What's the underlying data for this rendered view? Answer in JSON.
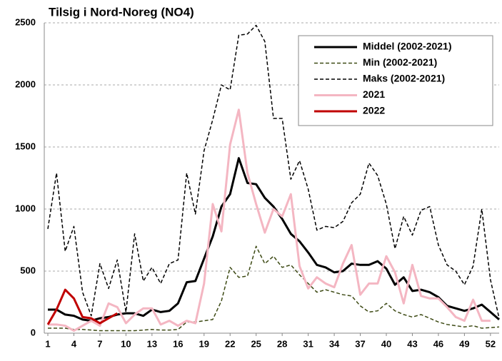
{
  "chart_data": {
    "type": "line",
    "title": "Tilsig i Nord-Noreg (NO4)",
    "x": [
      1,
      2,
      3,
      4,
      5,
      6,
      7,
      8,
      9,
      10,
      11,
      12,
      13,
      14,
      15,
      16,
      17,
      18,
      19,
      20,
      21,
      22,
      23,
      24,
      25,
      26,
      27,
      28,
      29,
      30,
      31,
      32,
      33,
      34,
      35,
      36,
      37,
      38,
      39,
      40,
      41,
      42,
      43,
      44,
      45,
      46,
      47,
      48,
      49,
      50,
      51,
      52,
      53
    ],
    "xlim": [
      1,
      53
    ],
    "xticks": [
      1,
      4,
      7,
      10,
      13,
      16,
      19,
      22,
      25,
      28,
      31,
      34,
      37,
      40,
      43,
      46,
      49,
      52
    ],
    "ylim": [
      0,
      2500
    ],
    "yticks": [
      0,
      500,
      1000,
      1500,
      2000,
      2500
    ],
    "grid": true,
    "legend": "upper right",
    "series": [
      {
        "name": "Middel (2002-2021)",
        "color": "#000000",
        "width": 3,
        "dash": "none",
        "values": [
          190,
          190,
          150,
          140,
          110,
          100,
          120,
          130,
          150,
          160,
          160,
          140,
          190,
          170,
          180,
          240,
          410,
          420,
          600,
          780,
          1020,
          1120,
          1410,
          1210,
          1200,
          1090,
          1020,
          920,
          800,
          740,
          650,
          550,
          530,
          490,
          500,
          560,
          550,
          550,
          580,
          520,
          390,
          450,
          340,
          350,
          330,
          290,
          220,
          200,
          180,
          200,
          230,
          170,
          110
        ]
      },
      {
        "name": "Min (2002-2021)",
        "color": "#3d4a14",
        "width": 1.5,
        "dash": "5,3",
        "values": [
          40,
          40,
          40,
          30,
          30,
          25,
          20,
          20,
          20,
          20,
          20,
          25,
          30,
          25,
          25,
          30,
          90,
          90,
          100,
          110,
          260,
          530,
          450,
          460,
          700,
          560,
          620,
          530,
          550,
          470,
          400,
          330,
          350,
          330,
          310,
          300,
          220,
          170,
          180,
          240,
          180,
          150,
          130,
          150,
          120,
          90,
          70,
          60,
          50,
          60,
          40,
          45,
          50
        ]
      },
      {
        "name": "Maks (2002-2021)",
        "color": "#000000",
        "width": 1.5,
        "dash": "5,3",
        "values": [
          840,
          1290,
          660,
          860,
          330,
          140,
          560,
          360,
          590,
          170,
          800,
          420,
          530,
          400,
          560,
          590,
          1290,
          960,
          1470,
          1720,
          2000,
          1960,
          2400,
          2410,
          2480,
          2350,
          1730,
          1730,
          1240,
          1390,
          1160,
          830,
          860,
          850,
          900,
          1050,
          1120,
          1370,
          1270,
          1040,
          680,
          940,
          790,
          990,
          1020,
          710,
          550,
          500,
          390,
          540,
          1000,
          430,
          120
        ]
      },
      {
        "name": "2021",
        "color": "#f4b6c2",
        "width": 3,
        "dash": "none",
        "values": [
          70,
          70,
          60,
          20,
          60,
          100,
          60,
          240,
          210,
          80,
          150,
          200,
          200,
          70,
          100,
          60,
          100,
          80,
          400,
          1040,
          820,
          1520,
          1800,
          1290,
          1040,
          810,
          1000,
          940,
          1120,
          540,
          360,
          450,
          400,
          370,
          560,
          710,
          310,
          400,
          400,
          620,
          490,
          240,
          550,
          300,
          280,
          280,
          210,
          130,
          100,
          270,
          100,
          100,
          null
        ]
      },
      {
        "name": "2022",
        "color": "#c00000",
        "width": 3,
        "dash": "none",
        "values": [
          70,
          190,
          350,
          280,
          130,
          120,
          80,
          120,
          160,
          null,
          null,
          null,
          null,
          null,
          null,
          null,
          null,
          null,
          null,
          null,
          null,
          null,
          null,
          null,
          null,
          null,
          null,
          null,
          null,
          null,
          null,
          null,
          null,
          null,
          null,
          null,
          null,
          null,
          null,
          null,
          null,
          null,
          null,
          null,
          null,
          null,
          null,
          null,
          null,
          null,
          null,
          null,
          null
        ]
      }
    ]
  }
}
